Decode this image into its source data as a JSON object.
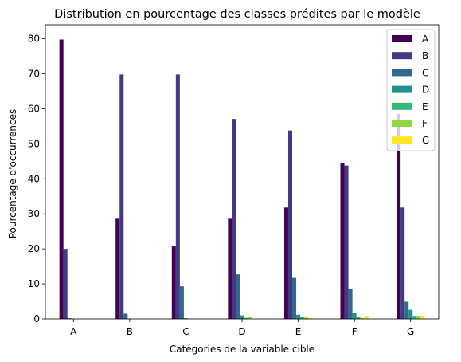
{
  "chart_data": {
    "type": "bar",
    "title": "Distribution en pourcentage des classes prédites par le modèle",
    "xlabel": "Catégories de la variable cible",
    "ylabel": "Pourcentage d'occurrences",
    "categories": [
      "A",
      "B",
      "C",
      "D",
      "E",
      "F",
      "G"
    ],
    "ylim": [
      0,
      84
    ],
    "yticks": [
      0,
      10,
      20,
      30,
      40,
      50,
      60,
      70,
      80
    ],
    "grid": false,
    "legend_position": "top-right",
    "series": [
      {
        "name": "A",
        "color": "#440154",
        "values": [
          79.8,
          28.6,
          20.7,
          28.6,
          31.8,
          44.6,
          58.5
        ]
      },
      {
        "name": "B",
        "color": "#443983",
        "values": [
          20.0,
          69.8,
          69.8,
          57.1,
          53.8,
          43.8,
          31.8
        ]
      },
      {
        "name": "C",
        "color": "#31688e",
        "values": [
          0.2,
          1.5,
          9.3,
          12.7,
          11.7,
          8.5,
          4.9
        ]
      },
      {
        "name": "D",
        "color": "#21918c",
        "values": [
          0.0,
          0.1,
          0.2,
          1.0,
          1.2,
          1.6,
          2.6
        ]
      },
      {
        "name": "E",
        "color": "#35b779",
        "values": [
          0.0,
          0.0,
          0.0,
          0.3,
          0.6,
          0.5,
          0.9
        ]
      },
      {
        "name": "F",
        "color": "#90d743",
        "values": [
          0.0,
          0.0,
          0.0,
          0.5,
          0.4,
          0.2,
          0.9
        ]
      },
      {
        "name": "G",
        "color": "#fde725",
        "values": [
          0.0,
          0.0,
          0.0,
          0.0,
          0.3,
          0.9,
          0.9
        ]
      }
    ]
  }
}
